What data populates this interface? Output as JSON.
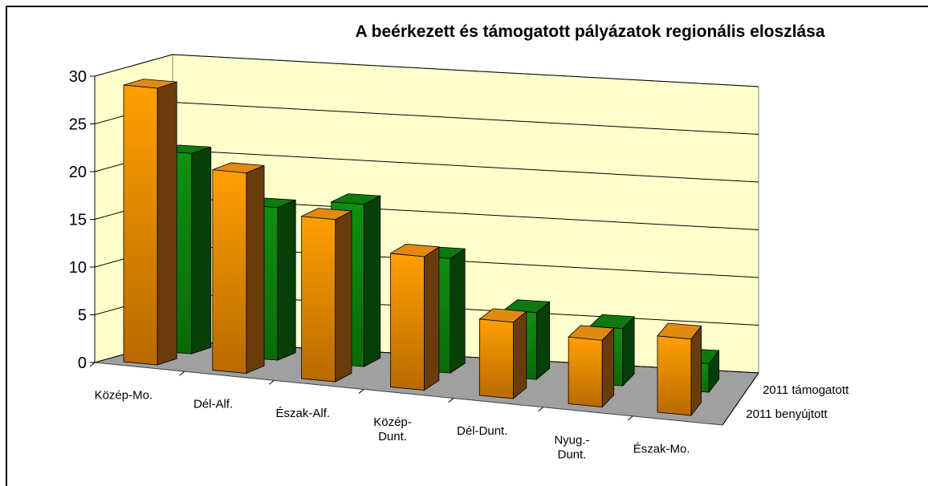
{
  "chart_data": {
    "type": "bar3d",
    "title": "A beérkezett és támogatott pályázatok regionális eloszlása",
    "categories": [
      "Közép-Mo.",
      "Dél-Alf.",
      "Észak-Alf.",
      "Közép-\nDunt.",
      "Dél-Dunt.",
      "Nyug.-\nDunt.",
      "Észak-Mo."
    ],
    "series": [
      {
        "name": "2011 benyújtott",
        "color": "#ff9f00",
        "values": [
          29,
          21,
          17,
          14,
          8,
          7,
          8
        ]
      },
      {
        "name": "2011 támogatott",
        "color": "#109010",
        "values": [
          21,
          16,
          17,
          12,
          7,
          6,
          3
        ]
      }
    ],
    "ylim": [
      0,
      30
    ],
    "yticks": [
      0,
      5,
      10,
      15,
      20,
      25,
      30
    ],
    "grid": true
  }
}
